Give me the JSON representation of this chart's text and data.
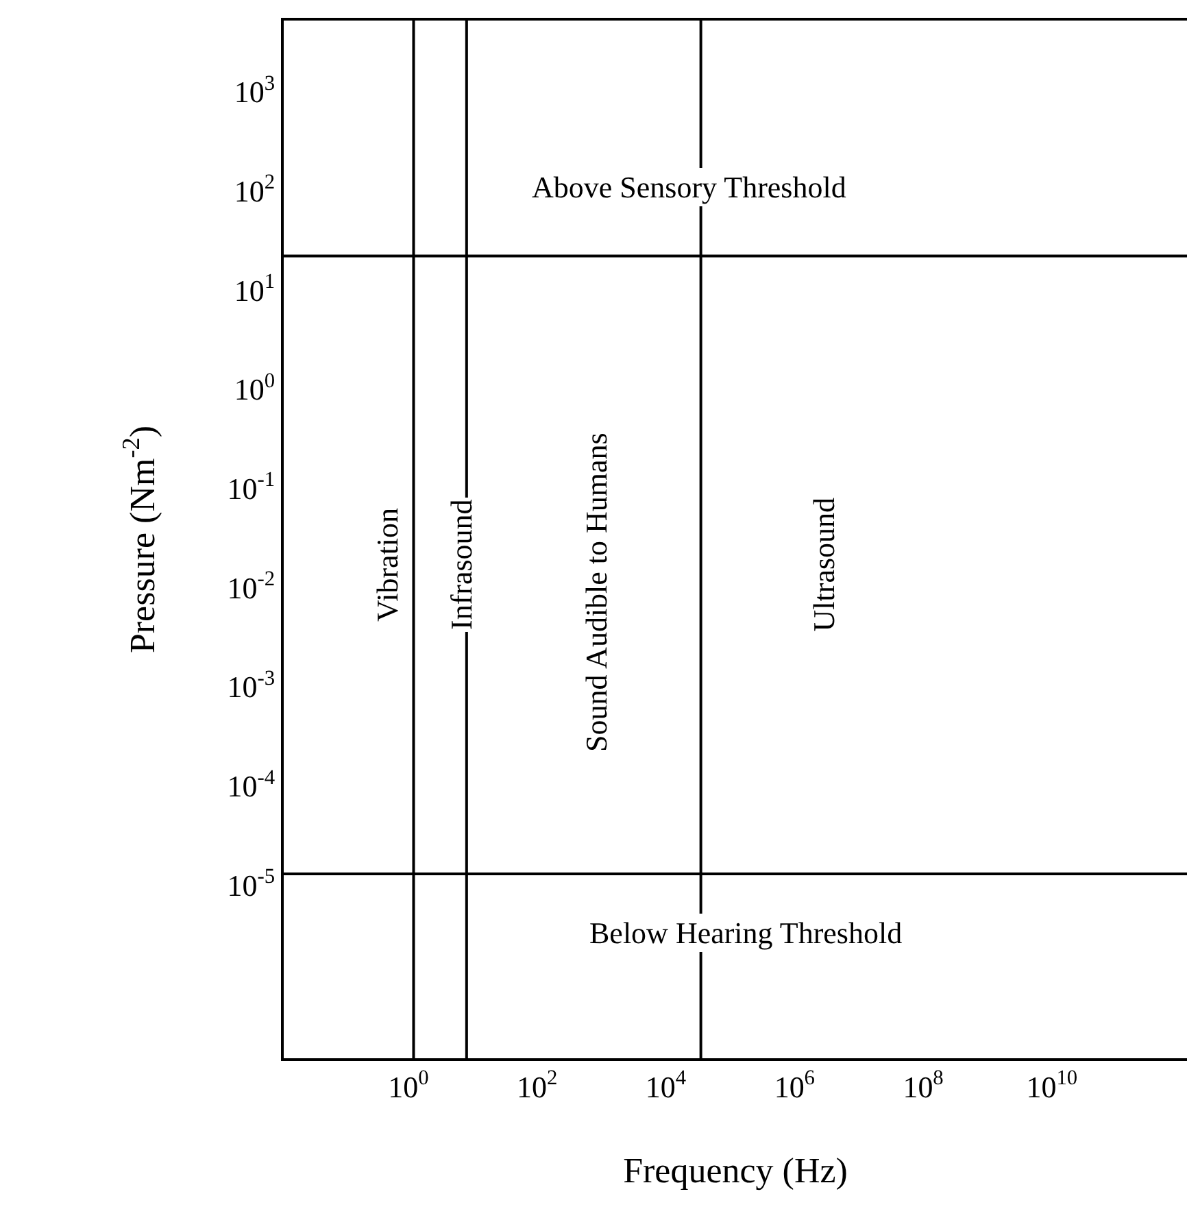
{
  "chart_data": {
    "type": "line",
    "xlabel": "Frequency (Hz)",
    "ylabel": "Pressure (Nm$^{-2}$)",
    "log": "xy",
    "xlim": [
      0.0115,
      1260000000000.0
    ],
    "ylim": [
      1.8e-07,
      5200
    ],
    "xticks": [
      {
        "value": 1,
        "label": "10$^{0}$"
      },
      {
        "value": 100,
        "label": "10$^{2}$"
      },
      {
        "value": 10000,
        "label": "10$^{4}$"
      },
      {
        "value": 1000000,
        "label": "10$^{6}$"
      },
      {
        "value": 100000000,
        "label": "10$^{8}$"
      },
      {
        "value": 10000000000,
        "label": "10$^{10}$"
      }
    ],
    "yticks": [
      {
        "value": 1000,
        "label": "10$^{3}$"
      },
      {
        "value": 100,
        "label": "10$^{2}$"
      },
      {
        "value": 10,
        "label": "10$^{1}$"
      },
      {
        "value": 1,
        "label": "10$^{0}$"
      },
      {
        "value": 0.1,
        "label": "10$^{-1}$"
      },
      {
        "value": 0.01,
        "label": "10$^{-2}$"
      },
      {
        "value": 0.001,
        "label": "10$^{-3}$"
      },
      {
        "value": 0.0001,
        "label": "10$^{-4}$"
      },
      {
        "value": 1e-05,
        "label": "10$^{-5}$"
      }
    ],
    "ref_lines": [
      {
        "axis": "x",
        "value": 1.2,
        "color": "#000000"
      },
      {
        "axis": "x",
        "value": 8,
        "color": "#000000"
      },
      {
        "axis": "x",
        "value": 35000,
        "color": "#000000"
      },
      {
        "axis": "y",
        "value": 22,
        "color": "#000000"
      },
      {
        "axis": "y",
        "value": 1.3e-05,
        "color": "#000000"
      }
    ],
    "annotations": [
      "Above Sensory Threshold",
      "Below Hearing Threshold",
      "Vibration",
      "Infrasound",
      "Sound Audible to Humans",
      "Ultrasound"
    ]
  }
}
